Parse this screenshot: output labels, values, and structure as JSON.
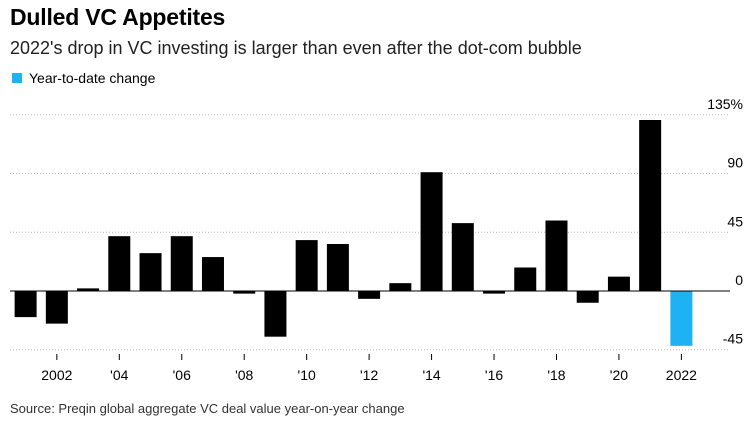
{
  "title": "Dulled VC Appetites",
  "subtitle": "2022's drop in VC investing is larger than even after the dot-com bubble",
  "source": "Source: Preqin global aggregate VC deal value year-on-year change",
  "chart_data": {
    "type": "bar",
    "legend": [
      {
        "label": "Year-to-date change",
        "color": "#1fb2f2"
      }
    ],
    "categories": [
      "2001",
      "2002",
      "2003",
      "2004",
      "2005",
      "2006",
      "2007",
      "2008",
      "2009",
      "2010",
      "2011",
      "2012",
      "2013",
      "2014",
      "2015",
      "2016",
      "2017",
      "2018",
      "2019",
      "2020",
      "2021",
      "2022"
    ],
    "values": [
      -20,
      -25,
      2,
      42,
      29,
      42,
      26,
      -2,
      -35,
      39,
      36,
      -6,
      6,
      91,
      52,
      -2,
      18,
      54,
      -9,
      11,
      131,
      -42
    ],
    "highlight": {
      "category": "2022",
      "color": "#1fb2f2"
    },
    "bar_color": "#000000",
    "ylim": [
      -50,
      140
    ],
    "yticks": [
      {
        "value": 135,
        "label": "135%"
      },
      {
        "value": 90,
        "label": "90"
      },
      {
        "value": 45,
        "label": "45"
      },
      {
        "value": 0,
        "label": "0"
      },
      {
        "value": -45,
        "label": "-45"
      }
    ],
    "xticks": [
      {
        "category": "2002",
        "label": "2002"
      },
      {
        "category": "2004",
        "label": "'04"
      },
      {
        "category": "2006",
        "label": "'06"
      },
      {
        "category": "2008",
        "label": "'08"
      },
      {
        "category": "2010",
        "label": "'10"
      },
      {
        "category": "2012",
        "label": "'12"
      },
      {
        "category": "2014",
        "label": "'14"
      },
      {
        "category": "2016",
        "label": "'16"
      },
      {
        "category": "2018",
        "label": "'18"
      },
      {
        "category": "2020",
        "label": "'20"
      },
      {
        "category": "2022",
        "label": "2022"
      }
    ],
    "grid": "horizontal, dotted",
    "yaxis_position": "right"
  }
}
